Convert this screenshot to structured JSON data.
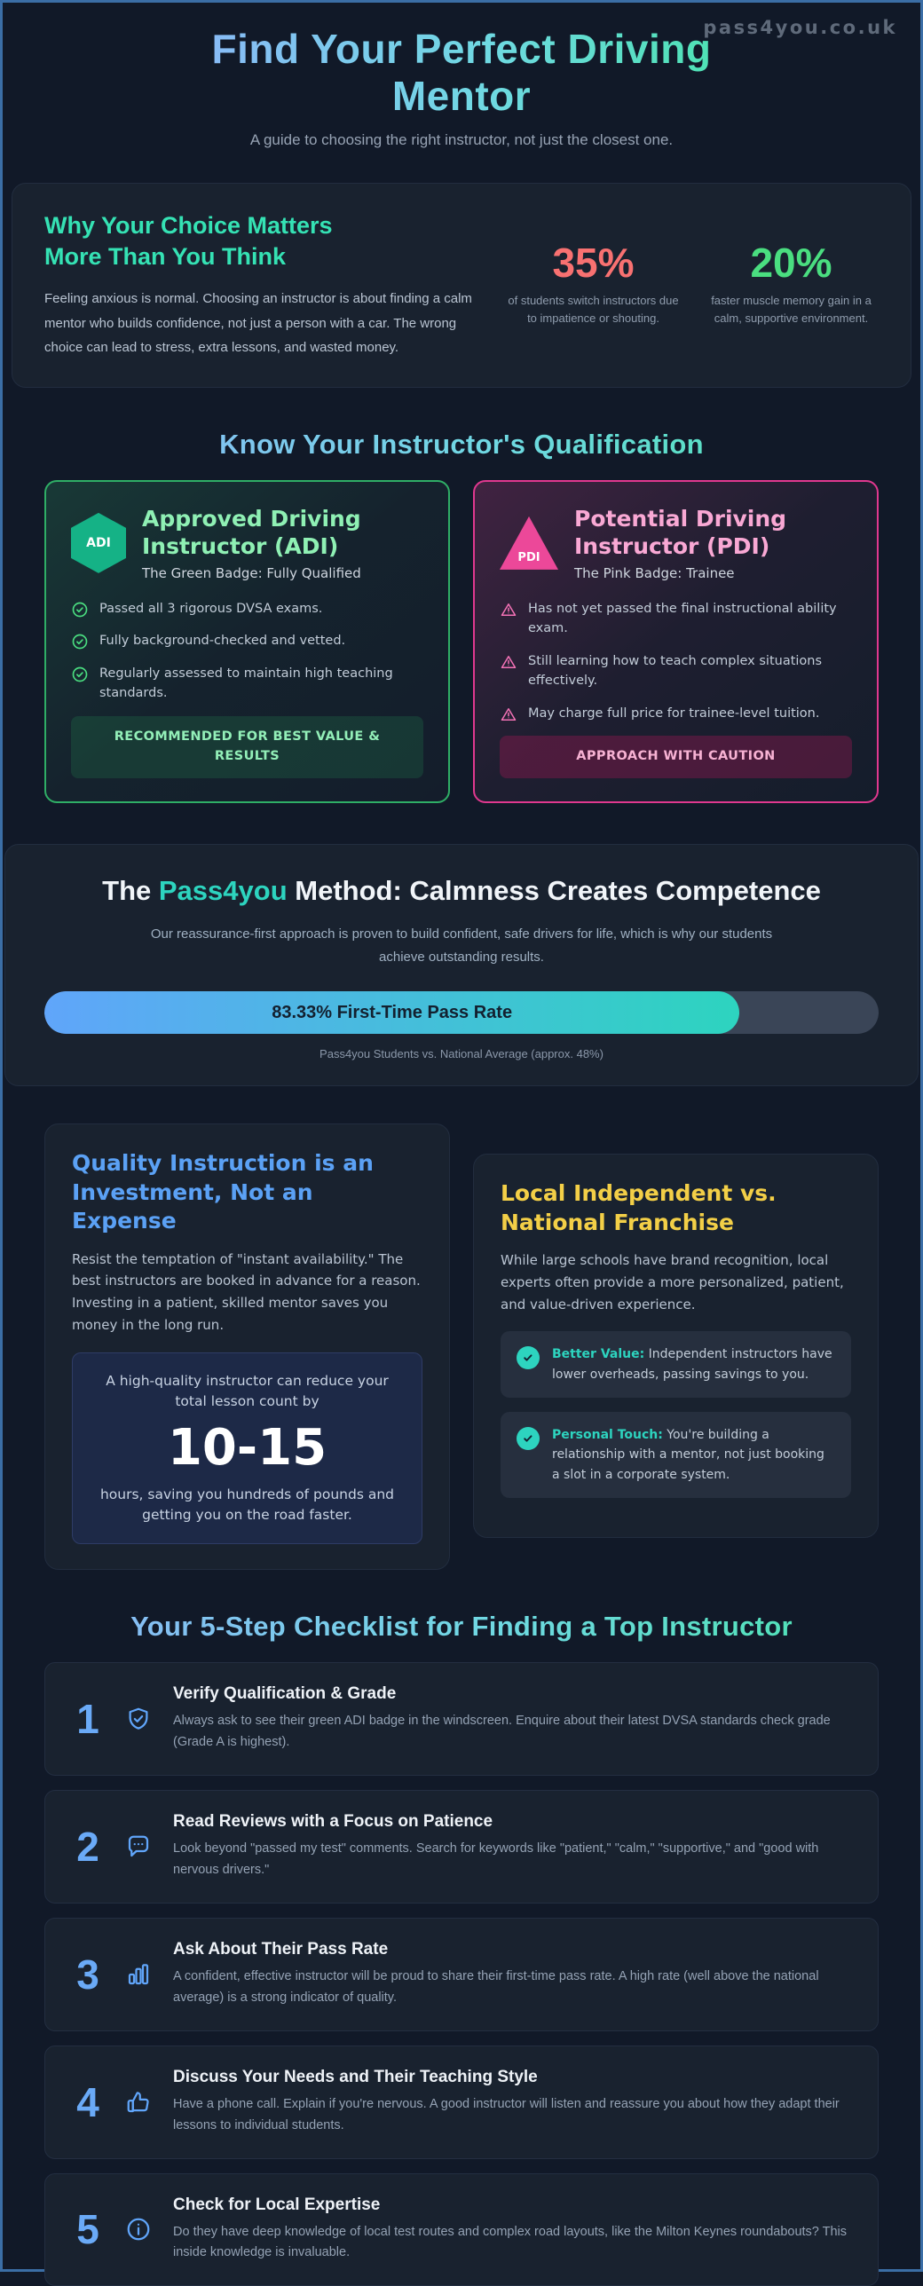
{
  "watermark": "pass4you.co.uk",
  "hero": {
    "title": "Find Your Perfect Driving Mentor",
    "subtitle": "A guide to choosing the right instructor, not just the closest one."
  },
  "why": {
    "heading": "Why Your Choice Matters More Than You Think",
    "body": "Feeling anxious is normal. Choosing an instructor is about finding a calm mentor who builds confidence, not just a person with a car. The wrong choice can lead to stress, extra lessons, and wasted money.",
    "stats": [
      {
        "value": "35%",
        "color": "#f87171",
        "caption": "of students switch instructors due to impatience or shouting."
      },
      {
        "value": "20%",
        "color": "#4ade80",
        "caption": "faster muscle memory gain in a calm, supportive environment."
      }
    ]
  },
  "qualification": {
    "heading": "Know Your Instructor's Qualification",
    "adi": {
      "badge": "ADI",
      "title": "Approved Driving Instructor (ADI)",
      "subtitle": "The Green Badge: Fully Qualified",
      "items": [
        "Passed all 3 rigorous DVSA exams.",
        "Fully background-checked and vetted.",
        "Regularly assessed to maintain high teaching standards."
      ],
      "footer": "RECOMMENDED FOR BEST VALUE & RESULTS"
    },
    "pdi": {
      "badge": "PDI",
      "title": "Potential Driving Instructor (PDI)",
      "subtitle": "The Pink Badge: Trainee",
      "items": [
        "Has not yet passed the final instructional ability exam.",
        "Still learning how to teach complex situations effectively.",
        "May charge full price for trainee-level tuition."
      ],
      "footer": "APPROACH WITH CAUTION"
    }
  },
  "method": {
    "heading_pre": "The ",
    "brand": "Pass4you",
    "heading_post": " Method: Calmness Creates Competence",
    "body": "Our reassurance-first approach is proven to build confident, safe drivers for life, which is why our students achieve outstanding results.",
    "bar_label": "83.33% First-Time Pass Rate",
    "bar_percent": 83.33,
    "caption": "Pass4you Students vs. National Average (approx. 48%)"
  },
  "investment": {
    "heading": "Quality Instruction is an Investment, Not an Expense",
    "body": "Resist the temptation of \"instant availability.\" The best instructors are booked in advance for a reason. Investing in a patient, skilled mentor saves you money in the long run.",
    "highlight": {
      "pre": "A high-quality instructor can reduce your total lesson count by",
      "number": "10-15",
      "post": "hours, saving you hundreds of pounds and getting you on the road faster."
    }
  },
  "local": {
    "heading": "Local Independent vs. National Franchise",
    "body": "While large schools have brand recognition, local experts often provide a more personalized, patient, and value-driven experience.",
    "items": [
      {
        "lead": "Better Value:",
        "text": " Independent instructors have lower overheads, passing savings to you."
      },
      {
        "lead": "Personal Touch:",
        "text": " You're building a relationship with a mentor, not just booking a slot in a corporate system."
      }
    ]
  },
  "checklist": {
    "heading": "Your 5-Step Checklist for Finding a Top Instructor",
    "steps": [
      {
        "num": "1",
        "icon": "shield-check-icon",
        "title": "Verify Qualification & Grade",
        "body": "Always ask to see their green ADI badge in the windscreen. Enquire about their latest DVSA standards check grade (Grade A is highest)."
      },
      {
        "num": "2",
        "icon": "chat-bubble-icon",
        "title": "Read Reviews with a Focus on Patience",
        "body": "Look beyond \"passed my test\" comments. Search for keywords like \"patient,\" \"calm,\" \"supportive,\" and \"good with nervous drivers.\""
      },
      {
        "num": "3",
        "icon": "bar-chart-icon",
        "title": "Ask About Their Pass Rate",
        "body": "A confident, effective instructor will be proud to share their first-time pass rate. A high rate (well above the national average) is a strong indicator of quality."
      },
      {
        "num": "4",
        "icon": "thumbs-up-icon",
        "title": "Discuss Your Needs and Their Teaching Style",
        "body": "Have a phone call. Explain if you're nervous. A good instructor will listen and reassure you about how they adapt their lessons to individual students."
      },
      {
        "num": "5",
        "icon": "info-icon",
        "title": "Check for Local Expertise",
        "body": "Do they have deep knowledge of local test routes and complex road layouts, like the Milton Keynes roundabouts? This inside knowledge is invaluable."
      }
    ]
  },
  "colors": {
    "page_background": "#111928",
    "page_border": "#3b6ea6",
    "card_background": "#19222f",
    "teal_accent": "#2dd4bf",
    "blue_accent": "#60a5fa",
    "green_accent": "#4ade80",
    "red_accent": "#f87171",
    "pink_accent": "#ec4899",
    "yellow_accent": "#f3cf47"
  }
}
